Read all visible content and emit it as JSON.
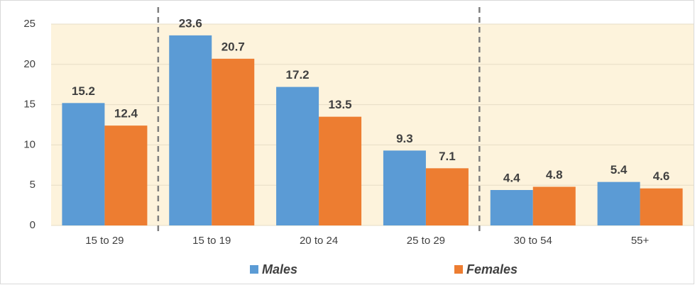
{
  "chart_data": {
    "type": "bar",
    "categories": [
      "15 to 29",
      "15 to 19",
      "20 to 24",
      "25 to 29",
      "30 to 54",
      "55+"
    ],
    "series": [
      {
        "name": "Males",
        "color": "#5b9bd5",
        "values": [
          15.2,
          23.6,
          17.2,
          9.3,
          4.4,
          5.4
        ]
      },
      {
        "name": "Females",
        "color": "#ed7d31",
        "values": [
          12.4,
          20.7,
          13.5,
          7.1,
          4.8,
          4.6
        ]
      }
    ],
    "ylim": [
      0,
      25
    ],
    "yticks": [
      0,
      5,
      10,
      15,
      20,
      25
    ],
    "grid": true,
    "legend": "bottom"
  }
}
